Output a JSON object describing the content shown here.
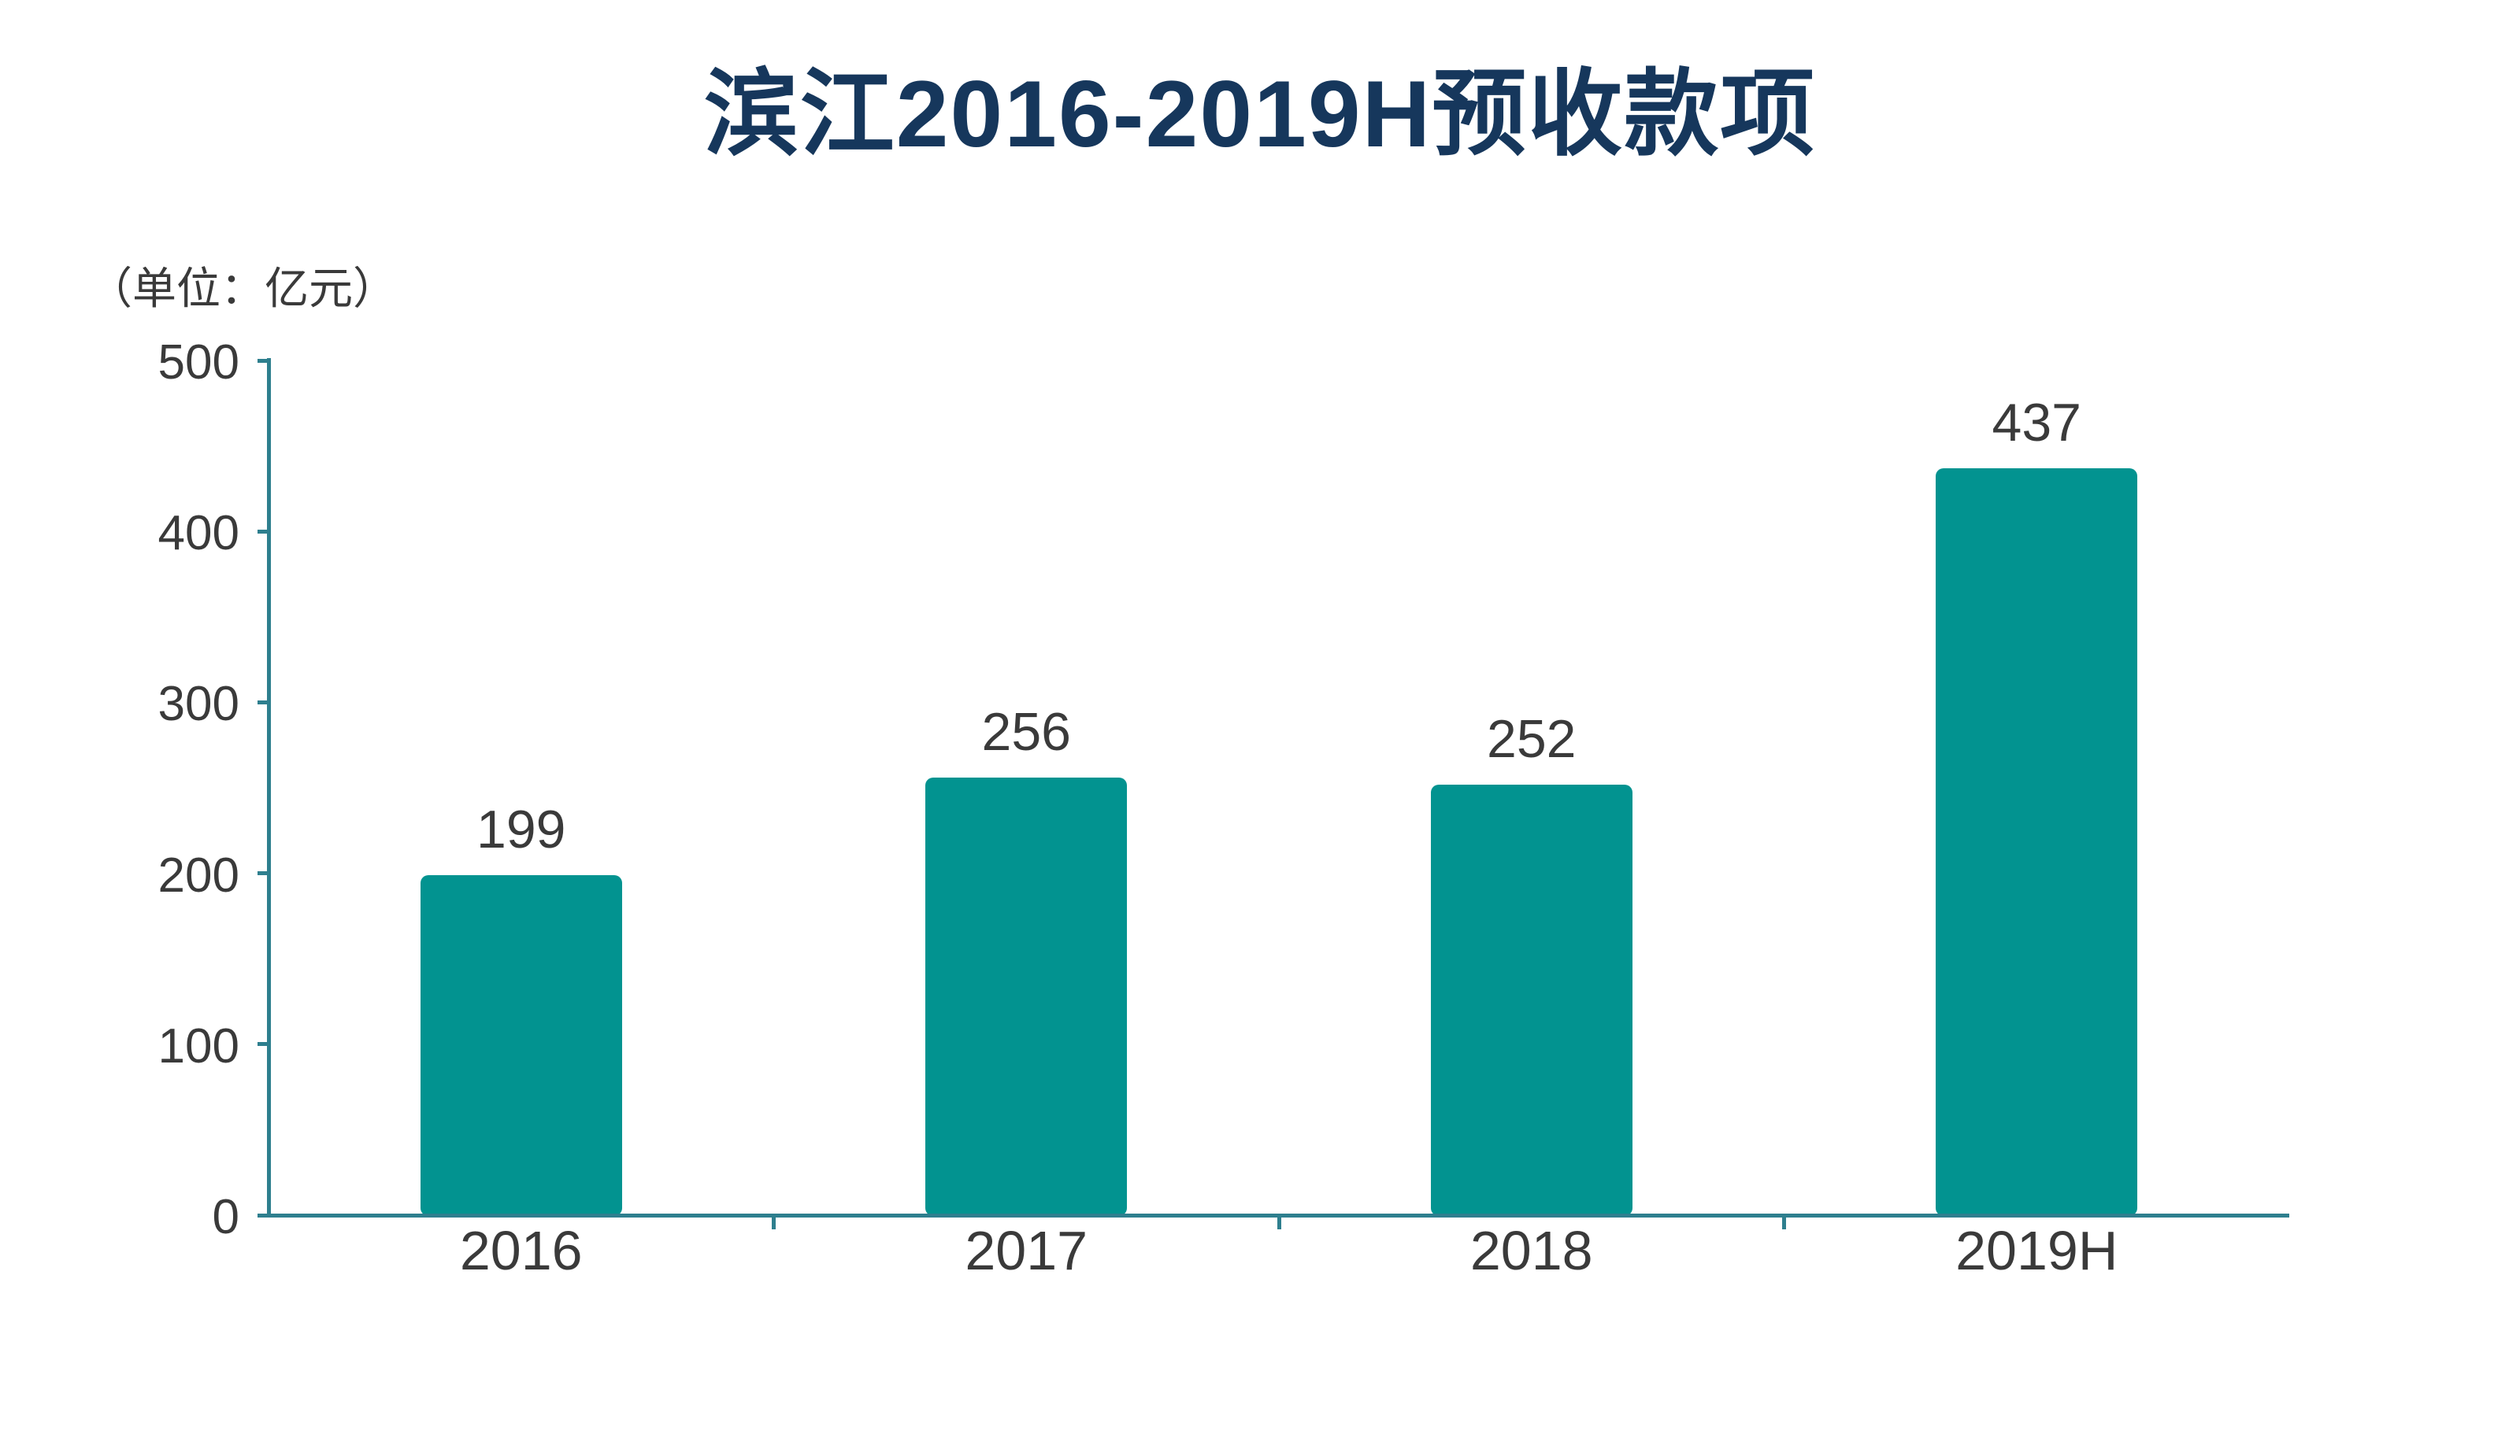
{
  "chart_data": {
    "type": "bar",
    "title": "滨江2016-2019H预收款项",
    "unit_label": "（单位：亿元）",
    "categories": [
      "2016",
      "2017",
      "2018",
      "2019H"
    ],
    "values": [
      199,
      256,
      252,
      437
    ],
    "value_labels": [
      "199",
      "256",
      "252",
      "437"
    ],
    "ylim": [
      0,
      500
    ],
    "yticks": [
      0,
      100,
      200,
      300,
      400,
      500
    ],
    "ylabel": "",
    "xlabel": "",
    "grid": "off",
    "legend": "none",
    "colors": {
      "bar": "#029390",
      "axis": "#2E7F8E",
      "title": "#16375C",
      "text": "#3A3A3A",
      "background": "#FFFFFF"
    }
  }
}
